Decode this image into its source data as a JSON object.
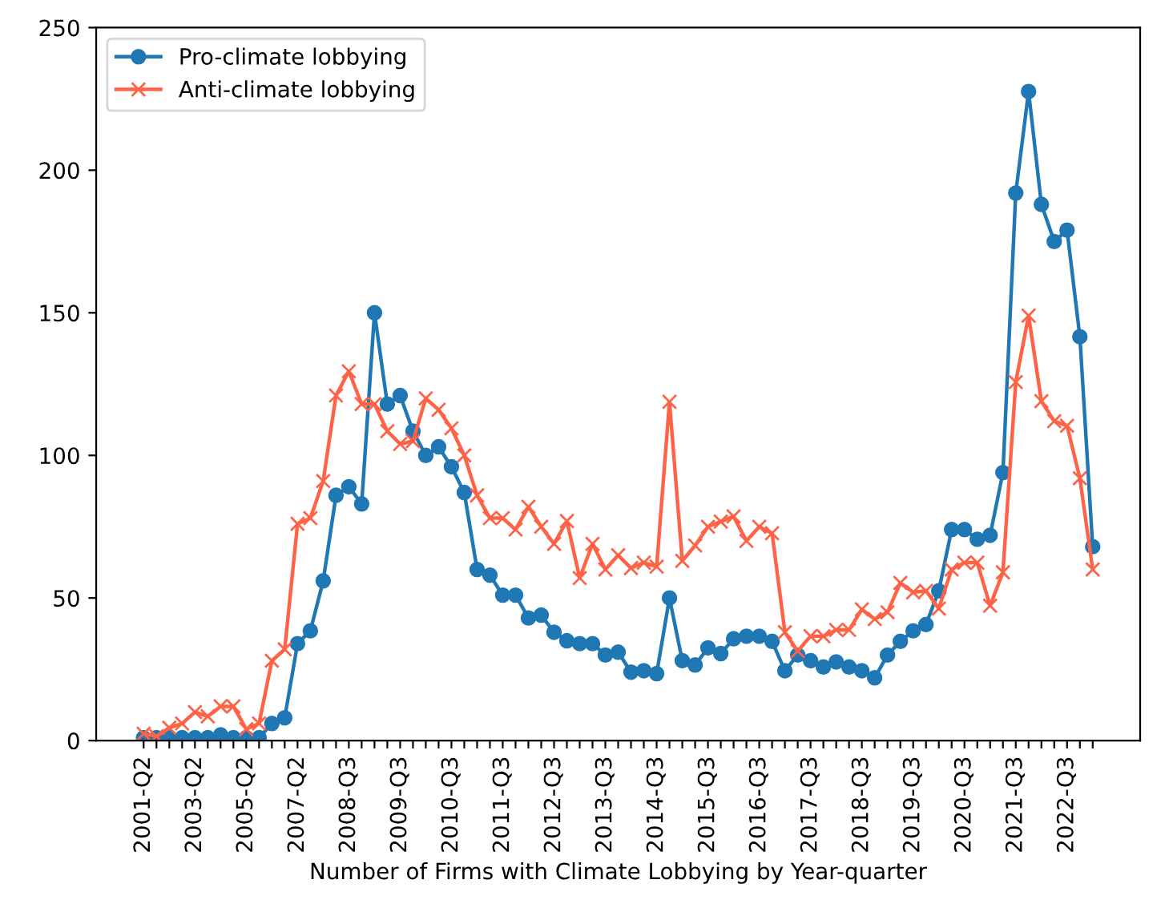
{
  "chart_data": {
    "type": "line",
    "xlabel": "Number of Firms with Climate Lobbying by Year-quarter",
    "categories": [
      "2001-Q2",
      null,
      null,
      null,
      "2003-Q2",
      null,
      null,
      null,
      "2005-Q2",
      null,
      null,
      null,
      "2007-Q2",
      null,
      null,
      null,
      "2008-Q3",
      null,
      null,
      null,
      "2009-Q3",
      null,
      null,
      null,
      "2010-Q3",
      null,
      null,
      null,
      "2011-Q3",
      null,
      null,
      null,
      "2012-Q3",
      null,
      null,
      null,
      "2013-Q3",
      null,
      null,
      null,
      "2014-Q3",
      null,
      null,
      null,
      "2015-Q3",
      null,
      null,
      null,
      "2016-Q3",
      null,
      null,
      null,
      "2017-Q3",
      null,
      null,
      null,
      "2018-Q3",
      null,
      null,
      null,
      "2019-Q3",
      null,
      null,
      null,
      "2020-Q3",
      null,
      null,
      null,
      "2021-Q3",
      null,
      null,
      null,
      "2022-Q3",
      null,
      null
    ],
    "series": [
      {
        "name": "Pro-climate lobbying",
        "color": "#1f77b4",
        "marker": "circle",
        "values": [
          1,
          1,
          1,
          1,
          1,
          1,
          2,
          1,
          1,
          1,
          6,
          8,
          34,
          38.5,
          56,
          86,
          89,
          83,
          150,
          118,
          121,
          108.5,
          100,
          103,
          96,
          87,
          60,
          58,
          51,
          51,
          43,
          44,
          38,
          35,
          34,
          34,
          30,
          31,
          24,
          24.5,
          23.5,
          50,
          28,
          26.5,
          32.5,
          30.5,
          35.7,
          36.6,
          36.6,
          34.8,
          24.5,
          30,
          28,
          25.8,
          27.6,
          25.8,
          24.5,
          22,
          30,
          34.8,
          38.5,
          40.7,
          52.5,
          74,
          74,
          70.6,
          72,
          94,
          192,
          227.6,
          188,
          175,
          179,
          141.6,
          68
        ]
      },
      {
        "name": "Anti-climate lobbying",
        "color": "#ff6347",
        "marker": "cross",
        "values": [
          2.4,
          1.5,
          4.5,
          6,
          10,
          8.5,
          12,
          12,
          4,
          6,
          28,
          32,
          76,
          78,
          91,
          121,
          129.5,
          118,
          118,
          108.5,
          104,
          105,
          120,
          116,
          109.5,
          100,
          86,
          78,
          78,
          74,
          82,
          75,
          69,
          77,
          57,
          69,
          60,
          65,
          60.5,
          62.4,
          61,
          118.8,
          63,
          68.4,
          75,
          76.8,
          78.6,
          70,
          75,
          72.7,
          38,
          31.4,
          36.6,
          36.6,
          38.8,
          38.8,
          46,
          42.6,
          45,
          55.3,
          52,
          52.5,
          46.3,
          60,
          62.4,
          62.4,
          47.3,
          59,
          125.7,
          149,
          119,
          112,
          110.4,
          92,
          60
        ]
      }
    ],
    "ylim": [
      0,
      250
    ],
    "yticks": [
      0,
      50,
      100,
      150,
      200,
      250
    ],
    "legend": "top left",
    "grid": false,
    "line_style": "solid"
  }
}
